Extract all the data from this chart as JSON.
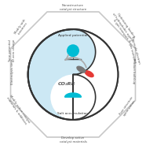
{
  "bg_color": "#ffffff",
  "octagon_color": "#c8c8c8",
  "octagon_fill": "#ffffff",
  "outer_circle_color": "#333333",
  "yin_yang_light": "#cce8f4",
  "center_text": "CO₂RR",
  "center_text_color": "#555555",
  "top_label": "Applied potential",
  "bottom_label": "Salt accumulation",
  "top_outer": "Nanostructure\ncatalyst structure",
  "bottom_outer": "Develop active\ncatalyst materials",
  "right_mid": "Product build-up",
  "left_mid": "Electrolysis time",
  "cyan_ball_color": "#00bcd4",
  "red_ball_color": "#e53935",
  "arrow_color": "#aaaaaa",
  "fs_outer": 2.8,
  "fs_inner": 3.2
}
